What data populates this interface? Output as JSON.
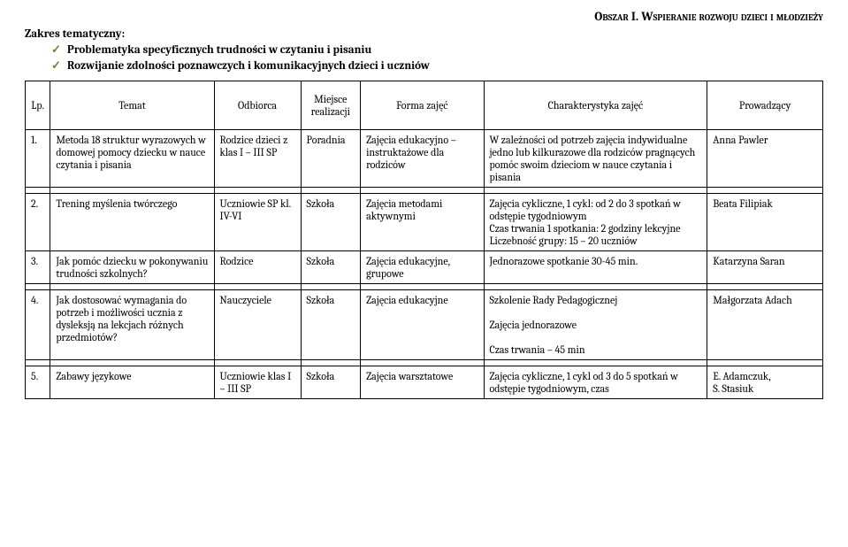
{
  "header": {
    "section_label": "Obszar I.",
    "section_title": "Wspieranie rozwoju dzieci i młodzieży"
  },
  "scope": {
    "label": "Zakres tematyczny:",
    "items": [
      "Problematyka specyficznych trudności w czytaniu i pisaniu",
      "Rozwijanie zdolności poznawczych i komunikacyjnych dzieci i uczniów"
    ]
  },
  "table": {
    "headers": {
      "lp": "Lp.",
      "temat": "Temat",
      "odbiorca": "Odbiorca",
      "miejsce": "Miejsce realizacji",
      "forma": "Forma zajęć",
      "char": "Charakterystyka zajęć",
      "prow": "Prowadzący"
    },
    "rows": [
      {
        "lp": "1.",
        "temat": "Metoda 18 struktur wyrazowych w domowej pomocy dziecku w nauce czytania i pisania",
        "odbiorca": "Rodzice dzieci z klas I – III SP",
        "miejsce": "Poradnia",
        "forma": "Zajęcia edukacyjno – instruktażowe dla rodziców",
        "char": "W zależności od potrzeb zajęcia indywidualne jedno lub kilkurazowe dla rodziców pragnących pomóc swoim dzieciom w nauce czytania i pisania",
        "prow": "Anna Pawler"
      },
      {
        "lp": "2.",
        "temat": "Trening myślenia twórczego",
        "odbiorca": "Uczniowie SP kl. IV-VI",
        "miejsce": "Szkoła",
        "forma": "Zajęcia metodami aktywnymi",
        "char": "Zajęcia cykliczne, 1 cykl: od 2 do 3 spotkań w odstępie tygodniowym\nCzas trwania 1 spotkania: 2 godziny lekcyjne\nLiczebność grupy: 15 – 20 uczniów",
        "prow": "Beata Filipiak"
      },
      {
        "lp": "3.",
        "temat": "Jak pomóc dziecku w pokonywaniu trudności szkolnych?",
        "odbiorca": "Rodzice",
        "miejsce": "Szkoła",
        "forma": "Zajęcia edukacyjne, grupowe",
        "char": "Jednorazowe spotkanie 30-45 min.",
        "prow": "Katarzyna Saran"
      },
      {
        "lp": "4.",
        "temat": "Jak dostosować wymagania do potrzeb i możliwości ucznia z dysleksją na lekcjach różnych przedmiotów?",
        "odbiorca": "Nauczyciele",
        "miejsce": "Szkoła",
        "forma": "Zajęcia edukacyjne",
        "char": "Szkolenie Rady Pedagogicznej\n\nZajęcia jednorazowe\n\nCzas trwania – 45 min",
        "prow": "Małgorzata Adach"
      },
      {
        "lp": "5.",
        "temat": "Zabawy językowe",
        "odbiorca": "Uczniowie klas I – III SP",
        "miejsce": "Szkoła",
        "forma": "Zajęcia warsztatowe",
        "char": "Zajęcia cykliczne, 1 cykl od 3 do 5 spotkań w odstępie tygodniowym, czas",
        "prow": "E. Adamczuk,\nS. Stasiuk"
      }
    ]
  }
}
